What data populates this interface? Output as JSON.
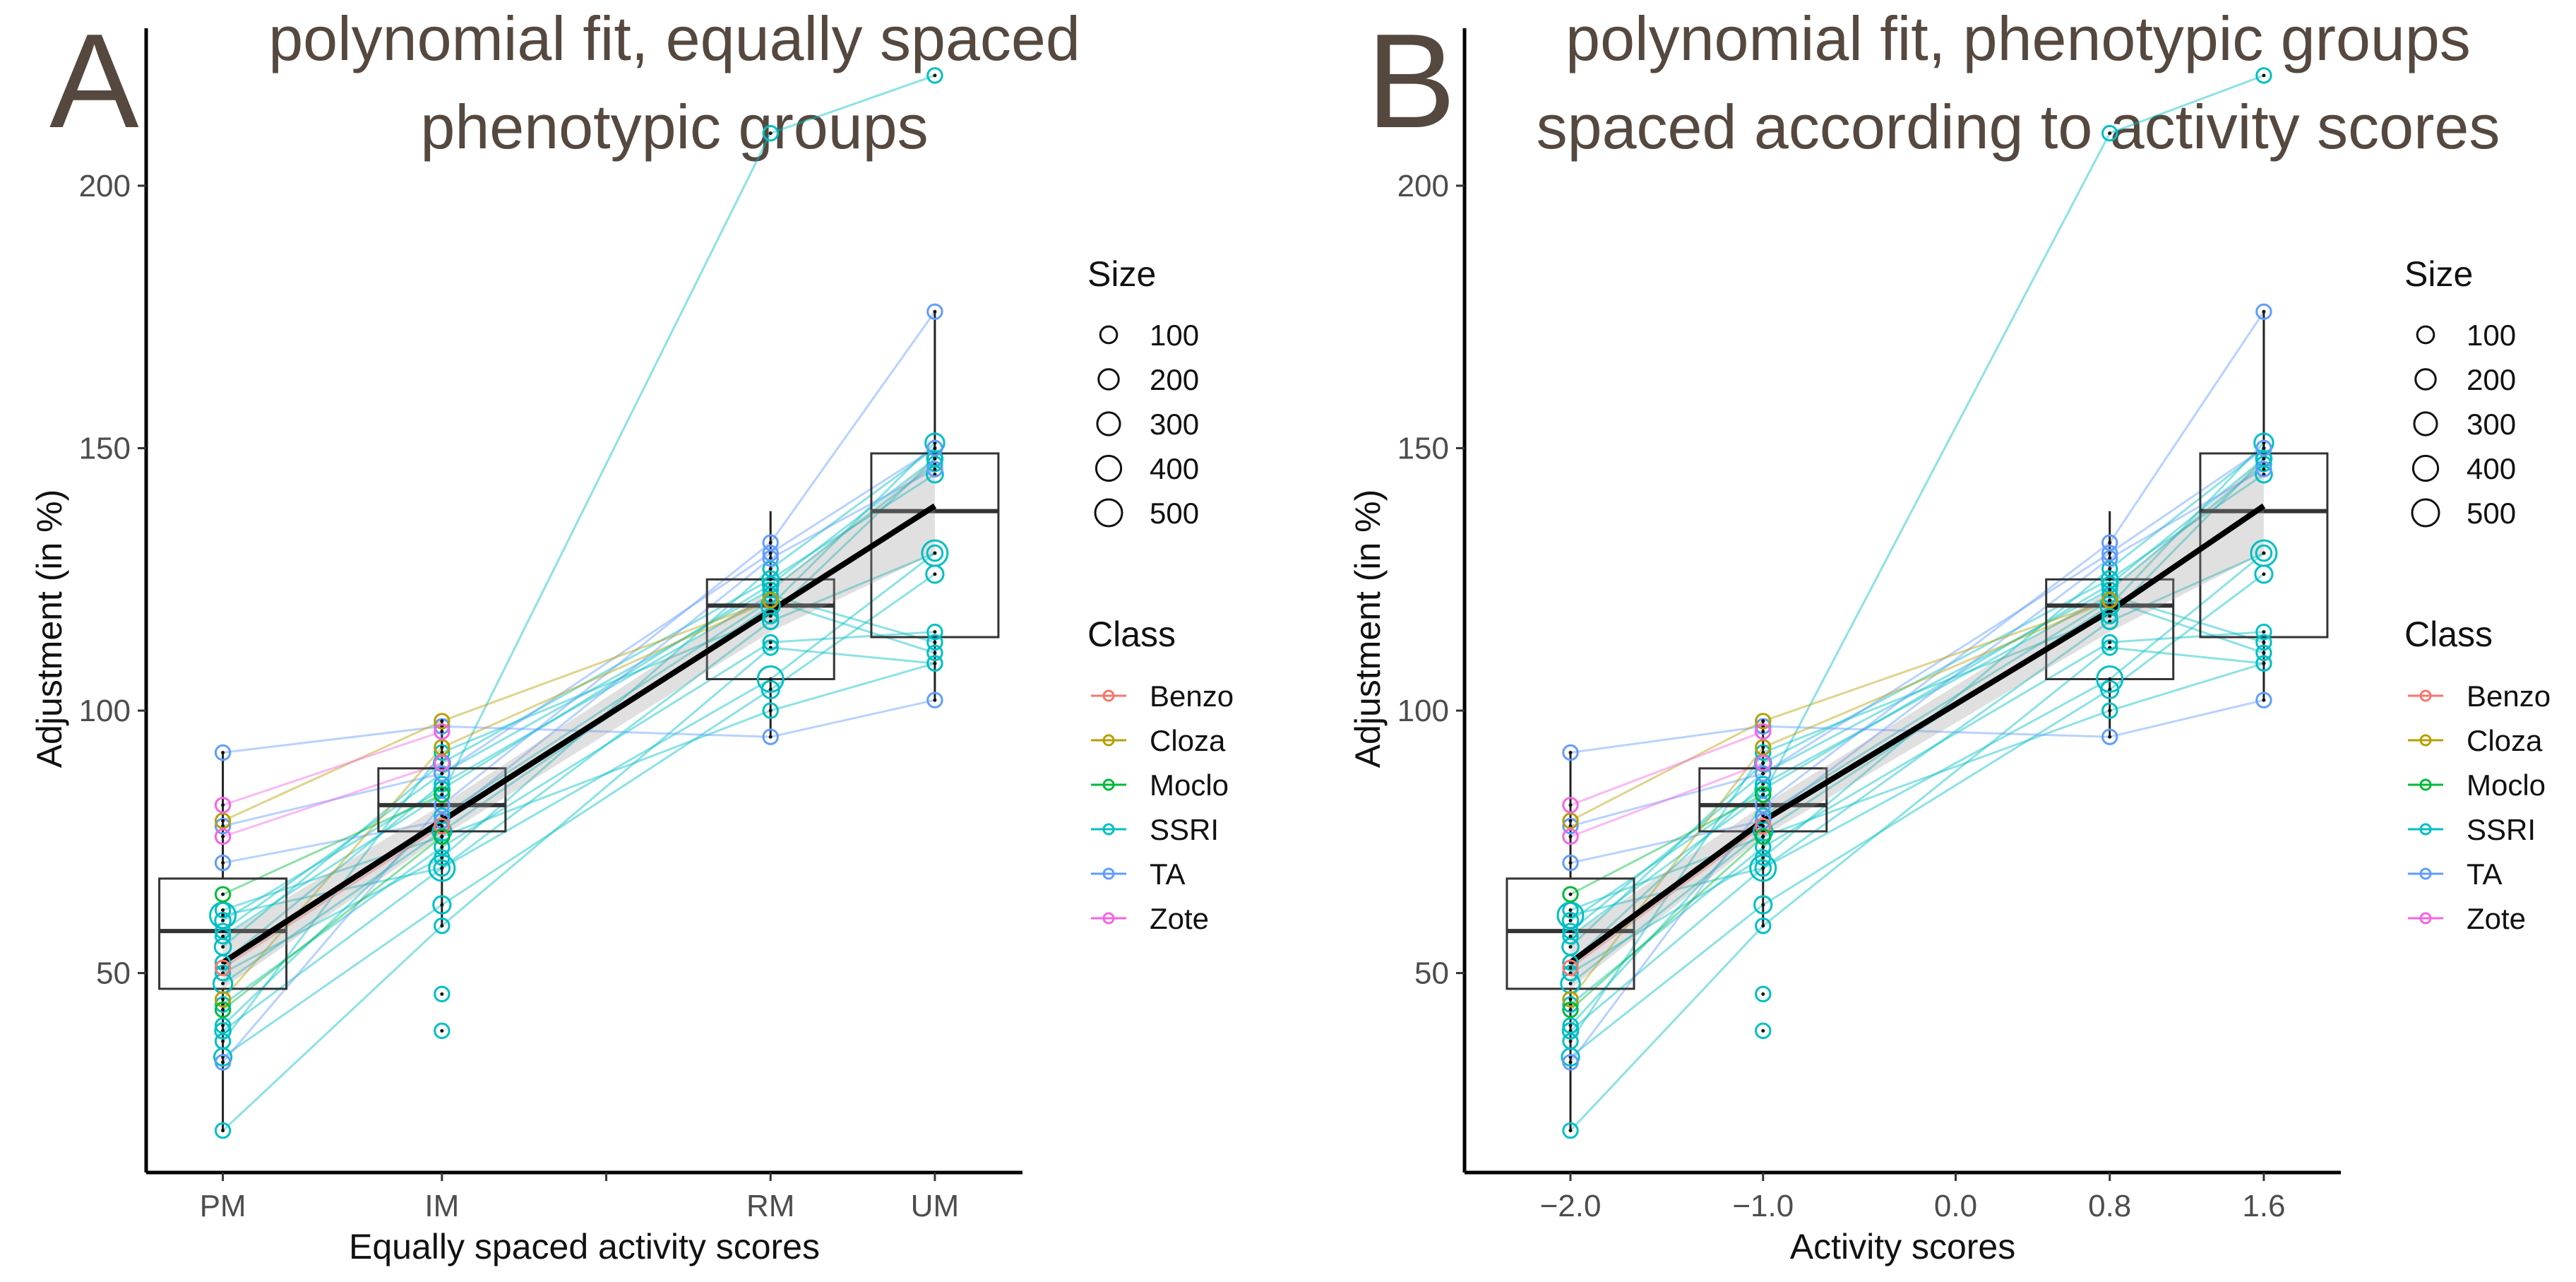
{
  "chart_data": [
    {
      "panel": "A",
      "type": "boxplot+scatter+line",
      "title_lines": [
        "polynomial fit, equally spaced",
        "phenotypic groups"
      ],
      "xlabel": "Equally spaced activity scores",
      "ylabel": "Adjustment (in %)",
      "x_positions": [
        1,
        2,
        3,
        4
      ],
      "x_ticks": [
        {
          "x": 1,
          "label": "PM"
        },
        {
          "x": 2,
          "label": "IM"
        },
        {
          "x": 2.75,
          "label": ""
        },
        {
          "x": 3.5,
          "label": "RM"
        },
        {
          "x": 4.25,
          "label": "UM"
        }
      ],
      "xlim": [
        0.65,
        4.65
      ],
      "ylim": [
        12,
        230
      ],
      "y_ticks": [
        50,
        100,
        150,
        200
      ],
      "x_map": [
        1,
        2,
        3.5,
        4.25
      ]
    },
    {
      "panel": "B",
      "type": "boxplot+scatter+line",
      "title_lines": [
        "polynomial fit, phenotypic groups",
        "spaced according to activity scores"
      ],
      "xlabel": "Activity scores",
      "ylabel": "Adjustment (in %)",
      "x_ticks": [
        {
          "x": -2.0,
          "label": "−2.0"
        },
        {
          "x": -1.0,
          "label": "−1.0"
        },
        {
          "x": 0.0,
          "label": "0.0"
        },
        {
          "x": 0.8,
          "label": "0.8"
        },
        {
          "x": 1.6,
          "label": "1.6"
        }
      ],
      "xlim": [
        -2.55,
        2.0
      ],
      "ylim": [
        12,
        230
      ],
      "y_ticks": [
        50,
        100,
        150,
        200
      ],
      "x_map": [
        -2.0,
        -1.0,
        0.8,
        1.6
      ]
    }
  ],
  "groups": [
    "PM",
    "IM",
    "RM",
    "UM"
  ],
  "boxes": [
    {
      "group": "PM",
      "q1": 47,
      "median": 58,
      "q3": 68,
      "whisker_low": 20,
      "whisker_high": 92
    },
    {
      "group": "IM",
      "q1": 77,
      "median": 82,
      "q3": 89,
      "whisker_low": 59,
      "whisker_high": 98
    },
    {
      "group": "RM",
      "q1": 106,
      "median": 120,
      "q3": 125,
      "whisker_low": 95,
      "whisker_high": 138
    },
    {
      "group": "UM",
      "q1": 114,
      "median": 138,
      "q3": 149,
      "whisker_low": 102,
      "whisker_high": 176
    }
  ],
  "fit": {
    "PM": 52,
    "IM": 79,
    "RM": 119,
    "UM": 139,
    "ci_halfwidth": [
      5,
      3,
      4,
      9
    ]
  },
  "classes": [
    {
      "name": "Benzo",
      "color": "#f8766d"
    },
    {
      "name": "Cloza",
      "color": "#b79f00"
    },
    {
      "name": "Moclo",
      "color": "#00ba38"
    },
    {
      "name": "SSRI",
      "color": "#00bfc4"
    },
    {
      "name": "TA",
      "color": "#619cff"
    },
    {
      "name": "Zote",
      "color": "#f564e3"
    }
  ],
  "points": [
    {
      "class": "SSRI",
      "size": 80,
      "values": [
        20,
        59,
        112,
        109
      ]
    },
    {
      "class": "SSRI",
      "size": 150,
      "values": [
        34,
        63,
        104,
        126
      ]
    },
    {
      "class": "SSRI",
      "size": 100,
      "values": [
        39,
        70,
        117,
        130
      ]
    },
    {
      "class": "SSRI",
      "size": 80,
      "values": [
        44,
        74,
        113,
        115
      ]
    },
    {
      "class": "SSRI",
      "size": 200,
      "values": [
        48,
        77,
        120,
        151
      ]
    },
    {
      "class": "SSRI",
      "size": 80,
      "values": [
        52,
        86,
        122,
        113
      ]
    },
    {
      "class": "SSRI",
      "size": 120,
      "values": [
        55,
        90,
        125,
        145
      ]
    },
    {
      "class": "SSRI",
      "size": 80,
      "values": [
        58,
        88,
        123,
        147
      ]
    },
    {
      "class": "SSRI",
      "size": 100,
      "values": [
        60,
        85,
        124,
        148
      ]
    },
    {
      "class": "SSRI",
      "size": 80,
      "values": [
        62,
        76,
        100,
        109
      ]
    },
    {
      "class": "SSRI",
      "size": 80,
      "values": [
        57,
        84,
        210,
        221
      ]
    },
    {
      "class": "SSRI",
      "size": 80,
      "values": [
        50,
        72,
        127,
        150
      ]
    },
    {
      "class": "SSRI",
      "size": 80,
      "values": [
        40,
        80,
        121,
        111
      ]
    },
    {
      "class": "SSRI",
      "size": 500,
      "values": [
        61,
        70,
        106,
        130
      ]
    },
    {
      "class": "SSRI",
      "size": 80,
      "values": [
        37,
        92,
        118,
        148
      ]
    },
    {
      "class": "TA",
      "size": 80,
      "values": [
        92,
        97,
        95,
        102
      ]
    },
    {
      "class": "TA",
      "size": 80,
      "values": [
        33,
        82,
        132,
        176
      ]
    },
    {
      "class": "TA",
      "size": 80,
      "values": [
        71,
        79,
        129,
        146
      ]
    },
    {
      "class": "TA",
      "size": 80,
      "values": [
        78,
        88,
        130,
        150
      ]
    },
    {
      "class": "Benzo",
      "size": 80,
      "values": [
        51,
        78,
        null,
        null
      ]
    },
    {
      "class": "Cloza",
      "size": 80,
      "values": [
        45,
        93,
        121,
        null
      ]
    },
    {
      "class": "Cloza",
      "size": 80,
      "values": [
        79,
        98,
        121,
        null
      ]
    },
    {
      "class": "Moclo",
      "size": 80,
      "values": [
        43,
        76,
        null,
        null
      ]
    },
    {
      "class": "Moclo",
      "size": 80,
      "values": [
        65,
        84,
        null,
        null
      ]
    },
    {
      "class": "Zote",
      "size": 80,
      "values": [
        82,
        96,
        null,
        null
      ]
    },
    {
      "class": "Zote",
      "size": 80,
      "values": [
        76,
        90,
        null,
        null
      ]
    }
  ],
  "extra_points": [
    {
      "class": "SSRI",
      "group": "IM",
      "value": 46,
      "size": 80
    },
    {
      "class": "SSRI",
      "group": "IM",
      "value": 39,
      "size": 80
    }
  ],
  "legend": {
    "size_title": "Size",
    "size_items": [
      100,
      200,
      300,
      400,
      500
    ],
    "class_title": "Class"
  }
}
